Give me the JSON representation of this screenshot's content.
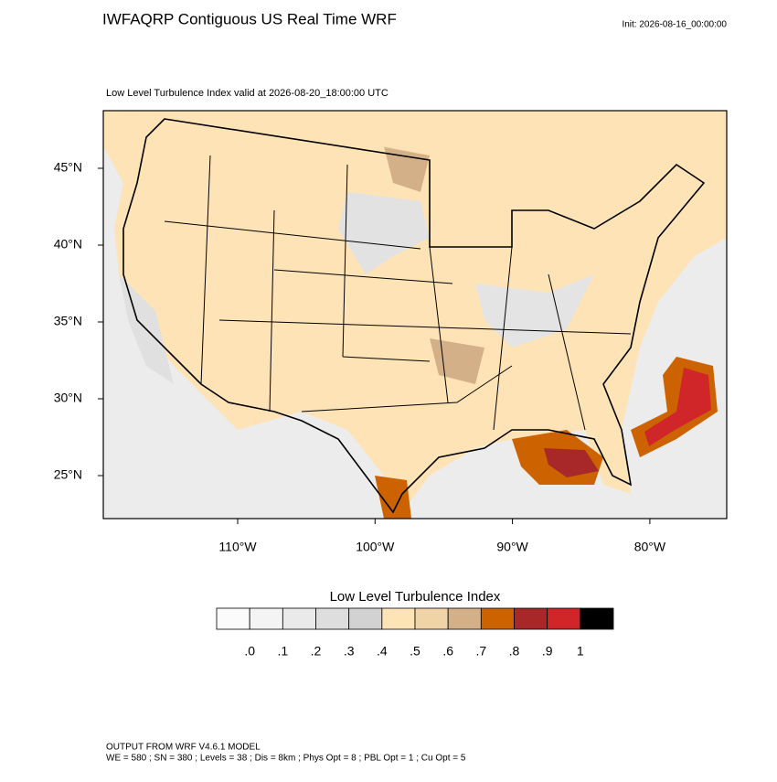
{
  "header": {
    "title": "IWFAQRP Contiguous US Real Time WRF",
    "init": "Init: 2026-08-16_00:00:00"
  },
  "map": {
    "subtitle": "Low Level Turbulence Index valid at 2026-08-20_18:00:00 UTC",
    "lat_labels": [
      "45°N",
      "40°N",
      "35°N",
      "30°N",
      "25°N"
    ],
    "lon_labels": [
      "110°W",
      "100°W",
      "90°W",
      "80°W"
    ]
  },
  "colorbar": {
    "title": "Low Level Turbulence Index",
    "colors": [
      "#fbfbfb",
      "#f4f4f4",
      "#eaeaea",
      "#dedede",
      "#d2d2d2",
      "#fde3b6",
      "#f0d3a6",
      "#d3b088",
      "#cc6300",
      "#a8282a",
      "#d0262a",
      "#000000"
    ],
    "labels": [
      ".0",
      ".1",
      ".2",
      ".3",
      ".4",
      ".5",
      ".6",
      ".7",
      ".8",
      ".9",
      "1"
    ]
  },
  "footer": {
    "lines": [
      "OUTPUT FROM WRF V4.6.1 MODEL",
      "WE = 580 ; SN = 380 ; Levels = 38 ; Dis = 8km ; Phys Opt = 8 ; PBL Opt = 1 ; Cu Opt = 5"
    ]
  }
}
